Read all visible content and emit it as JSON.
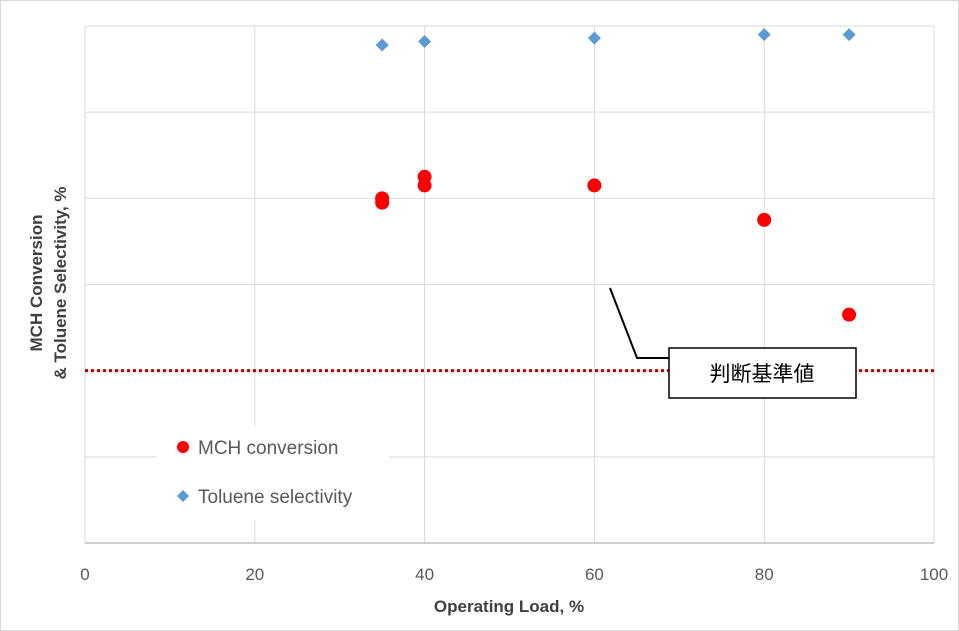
{
  "chart_data": {
    "type": "scatter",
    "title": "",
    "xlabel": "Operating Load, %",
    "ylabel_lines": [
      "MCH Conversion",
      "& Toluene Selectivity, %"
    ],
    "xlim": [
      0,
      100
    ],
    "xticks": [
      "0",
      "20",
      "40",
      "60",
      "80",
      "100"
    ],
    "x_gridlines": [
      0,
      20,
      40,
      60,
      80,
      100
    ],
    "y_gridline_count": 6,
    "y_tick_labels_shown": false,
    "grid": true,
    "legend_position": "bottom-left",
    "series": [
      {
        "name": "MCH conversion",
        "marker": "circle",
        "color": "#ff0000",
        "x": [
          35,
          35,
          40,
          40,
          60,
          80,
          90
        ],
        "y": [
          3.95,
          4.0,
          4.15,
          4.25,
          4.15,
          3.75,
          2.65
        ]
      },
      {
        "name": "Toluene selectivity",
        "marker": "diamond",
        "color": "#5b9bd5",
        "x": [
          35,
          40,
          60,
          80,
          90
        ],
        "y": [
          5.78,
          5.82,
          5.86,
          5.9,
          5.9
        ]
      }
    ],
    "reference_line": {
      "style": "dotted",
      "color": "#c00000",
      "y": 2
    },
    "annotation": {
      "text": "判断基準値",
      "points_to_x": 61
    }
  }
}
